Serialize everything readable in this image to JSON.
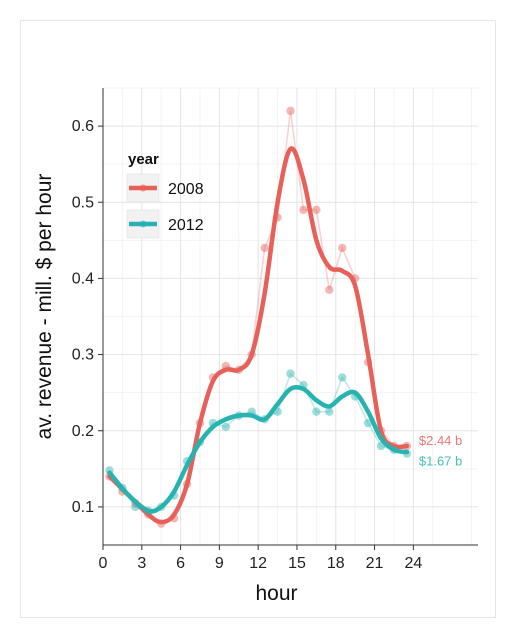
{
  "chart_data": {
    "type": "line",
    "title": "",
    "xlabel": "hour",
    "ylabel": "av. revenue - mill. $ per hour",
    "xlim": [
      0,
      29
    ],
    "ylim": [
      0.05,
      0.65
    ],
    "x_ticks": [
      0,
      3,
      6,
      9,
      12,
      15,
      18,
      21,
      24
    ],
    "y_ticks": [
      0.1,
      0.2,
      0.3,
      0.4,
      0.5,
      0.6
    ],
    "grid": true,
    "legend": {
      "title": "year",
      "placement": "top-left"
    },
    "series": [
      {
        "name": "2008",
        "color": "#e8605a",
        "points": [
          [
            0.5,
            0.14
          ],
          [
            1.5,
            0.12
          ],
          [
            2.5,
            0.105
          ],
          [
            3.5,
            0.09
          ],
          [
            4.5,
            0.078
          ],
          [
            5.5,
            0.085
          ],
          [
            6.5,
            0.13
          ],
          [
            7.5,
            0.21
          ],
          [
            8.5,
            0.27
          ],
          [
            9.5,
            0.285
          ],
          [
            10.5,
            0.28
          ],
          [
            11.5,
            0.3
          ],
          [
            12.5,
            0.44
          ],
          [
            13.5,
            0.48
          ],
          [
            14.5,
            0.62
          ],
          [
            15.5,
            0.49
          ],
          [
            16.5,
            0.49
          ],
          [
            17.5,
            0.385
          ],
          [
            18.5,
            0.44
          ],
          [
            19.5,
            0.4
          ],
          [
            20.5,
            0.29
          ],
          [
            21.5,
            0.2
          ],
          [
            22.5,
            0.18
          ],
          [
            23.5,
            0.18
          ]
        ],
        "smooth": [
          [
            0.5,
            0.14
          ],
          [
            2,
            0.115
          ],
          [
            3.5,
            0.09
          ],
          [
            4.5,
            0.08
          ],
          [
            5.5,
            0.09
          ],
          [
            6.5,
            0.13
          ],
          [
            7.5,
            0.21
          ],
          [
            8.5,
            0.265
          ],
          [
            9.5,
            0.28
          ],
          [
            10.5,
            0.28
          ],
          [
            11.5,
            0.3
          ],
          [
            12.5,
            0.38
          ],
          [
            13.5,
            0.5
          ],
          [
            14.5,
            0.57
          ],
          [
            15.5,
            0.53
          ],
          [
            16.5,
            0.45
          ],
          [
            17.5,
            0.415
          ],
          [
            18.5,
            0.41
          ],
          [
            19.5,
            0.39
          ],
          [
            20.5,
            0.3
          ],
          [
            21.5,
            0.2
          ],
          [
            22.5,
            0.18
          ],
          [
            23.5,
            0.18
          ]
        ],
        "end_label": "$2.44 b"
      },
      {
        "name": "2012",
        "color": "#27b3b0",
        "points": [
          [
            0.5,
            0.148
          ],
          [
            1.5,
            0.125
          ],
          [
            2.5,
            0.1
          ],
          [
            3.5,
            0.095
          ],
          [
            4.5,
            0.1
          ],
          [
            5.5,
            0.115
          ],
          [
            6.5,
            0.16
          ],
          [
            7.5,
            0.185
          ],
          [
            8.5,
            0.21
          ],
          [
            9.5,
            0.205
          ],
          [
            10.5,
            0.22
          ],
          [
            11.5,
            0.225
          ],
          [
            12.5,
            0.215
          ],
          [
            13.5,
            0.225
          ],
          [
            14.5,
            0.275
          ],
          [
            15.5,
            0.26
          ],
          [
            16.5,
            0.225
          ],
          [
            17.5,
            0.225
          ],
          [
            18.5,
            0.27
          ],
          [
            19.5,
            0.245
          ],
          [
            20.5,
            0.21
          ],
          [
            21.5,
            0.18
          ],
          [
            22.5,
            0.175
          ],
          [
            23.5,
            0.17
          ]
        ],
        "smooth": [
          [
            0.5,
            0.145
          ],
          [
            2,
            0.115
          ],
          [
            3.5,
            0.095
          ],
          [
            4.5,
            0.1
          ],
          [
            5.5,
            0.12
          ],
          [
            6.5,
            0.155
          ],
          [
            7.5,
            0.185
          ],
          [
            8.5,
            0.205
          ],
          [
            9.5,
            0.215
          ],
          [
            10.5,
            0.22
          ],
          [
            11.5,
            0.22
          ],
          [
            12.5,
            0.215
          ],
          [
            13.5,
            0.235
          ],
          [
            14.5,
            0.255
          ],
          [
            15.5,
            0.255
          ],
          [
            16.5,
            0.24
          ],
          [
            17.5,
            0.232
          ],
          [
            18.5,
            0.245
          ],
          [
            19.5,
            0.25
          ],
          [
            20.5,
            0.225
          ],
          [
            21.5,
            0.19
          ],
          [
            22.5,
            0.175
          ],
          [
            23.5,
            0.172
          ]
        ],
        "end_label": "$1.67 b"
      }
    ]
  }
}
